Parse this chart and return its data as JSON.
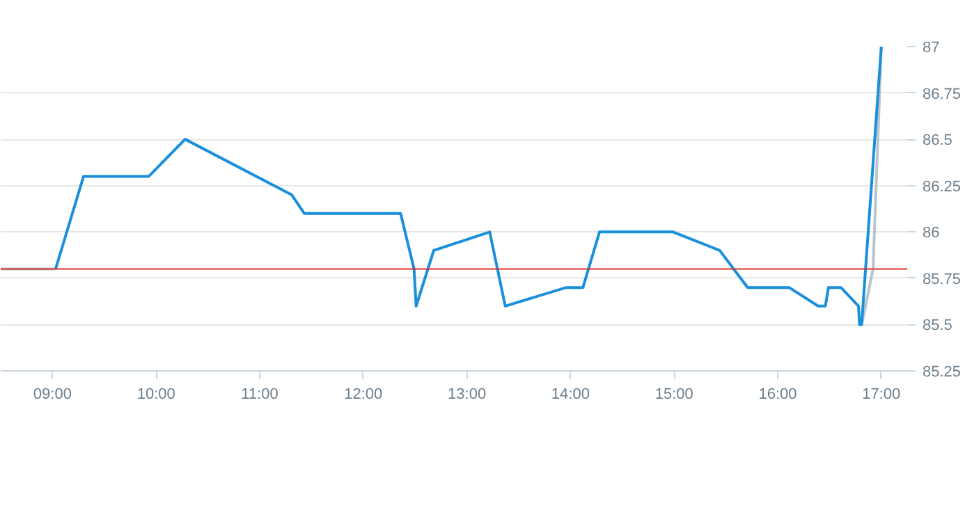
{
  "chart_data": {
    "type": "line",
    "series": [
      {
        "color": "#b9c5ce",
        "x": [
          8.5,
          9.03
        ],
        "values": [
          85.8,
          85.8
        ]
      },
      {
        "color": "#b9c5ce",
        "x": [
          16.81,
          16.83,
          16.92,
          17.0
        ],
        "values": [
          85.5,
          85.55,
          85.8,
          87.0
        ]
      },
      {
        "color": "#1a8fdb",
        "x": [
          9.03,
          9.3,
          9.93,
          10.28,
          11.31,
          11.43,
          12.36,
          12.49,
          12.51,
          12.68,
          13.22,
          13.37,
          13.96,
          14.12,
          14.28,
          14.99,
          15.44,
          15.71,
          16.11,
          16.39,
          16.46,
          16.49,
          16.61,
          16.78,
          16.79,
          16.81,
          17.0
        ],
        "values": [
          85.8,
          86.3,
          86.3,
          86.5,
          86.2,
          86.1,
          86.1,
          85.8,
          85.6,
          85.9,
          86.0,
          85.6,
          85.7,
          85.7,
          86.0,
          86.0,
          85.9,
          85.7,
          85.7,
          85.6,
          85.6,
          85.7,
          85.7,
          85.6,
          85.5,
          85.5,
          87.0
        ]
      }
    ],
    "xlim": [
      8.5,
      17.25
    ],
    "xticks": [
      {
        "value": 9,
        "label": "09:00"
      },
      {
        "value": 10,
        "label": "10:00"
      },
      {
        "value": 11,
        "label": "11:00"
      },
      {
        "value": 12,
        "label": "12:00"
      },
      {
        "value": 13,
        "label": "13:00"
      },
      {
        "value": 14,
        "label": "14:00"
      },
      {
        "value": 15,
        "label": "15:00"
      },
      {
        "value": 16,
        "label": "16:00"
      },
      {
        "value": 17,
        "label": "17:00"
      }
    ],
    "ylim": [
      85.25,
      87
    ],
    "yticks": [
      85.25,
      85.5,
      85.75,
      {
        "value": 86,
        "label": "86"
      },
      86.25,
      86.5,
      86.75,
      {
        "value": 87,
        "label": "87"
      }
    ],
    "ref_lines": [
      {
        "axis": "y",
        "value": 85.8,
        "color": "#d9302c"
      }
    ],
    "grid": "y",
    "marker": "none",
    "line_style": "solid"
  }
}
